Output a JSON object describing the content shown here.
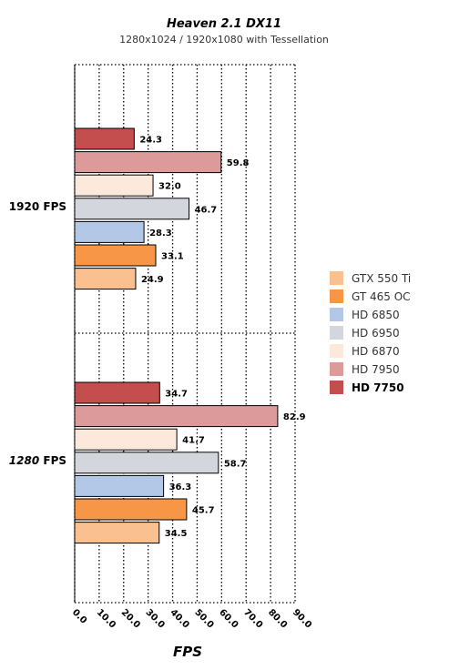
{
  "chart_data": {
    "type": "bar",
    "orientation": "horizontal",
    "title": "Heaven 2.1 DX11",
    "subtitle": "1280x1024 / 1920x1080 with Tessellation",
    "xlabel": "FPS",
    "xlim": [
      0,
      90
    ],
    "xticks": [
      "0.0",
      "10.0",
      "20.0",
      "30.0",
      "40.0",
      "50.0",
      "60.0",
      "70.0",
      "80.0",
      "90.0"
    ],
    "grid": true,
    "legend_position": "right",
    "categories": [
      {
        "label": "1920 FPS",
        "bold_part": "1920",
        "rest": " FPS"
      },
      {
        "label": "1280 FPS",
        "bold_part": "1280",
        "rest": " FPS"
      }
    ],
    "series": [
      {
        "name": "HD 7750",
        "color": "#c44d4d",
        "highlight": true,
        "values": [
          24.3,
          34.7
        ]
      },
      {
        "name": "HD 7950",
        "color": "#dc9a9a",
        "highlight": false,
        "values": [
          59.8,
          82.9
        ]
      },
      {
        "name": "HD 6870",
        "color": "#fde8dc",
        "highlight": false,
        "values": [
          32.0,
          41.7
        ]
      },
      {
        "name": "HD 6950",
        "color": "#d3d7dd",
        "highlight": false,
        "values": [
          46.7,
          58.7
        ]
      },
      {
        "name": "HD 6850",
        "color": "#b3c7e6",
        "highlight": false,
        "values": [
          28.3,
          36.3
        ]
      },
      {
        "name": "GT 465 OC",
        "color": "#f79646",
        "highlight": false,
        "values": [
          33.1,
          45.7
        ]
      },
      {
        "name": "GTX 550 Ti",
        "color": "#fac08f",
        "highlight": false,
        "values": [
          24.9,
          34.5
        ]
      }
    ],
    "legend_order": [
      "GTX 550 Ti",
      "GT 465 OC",
      "HD 6850",
      "HD 6950",
      "HD 6870",
      "HD 7950",
      "HD 7750"
    ]
  }
}
